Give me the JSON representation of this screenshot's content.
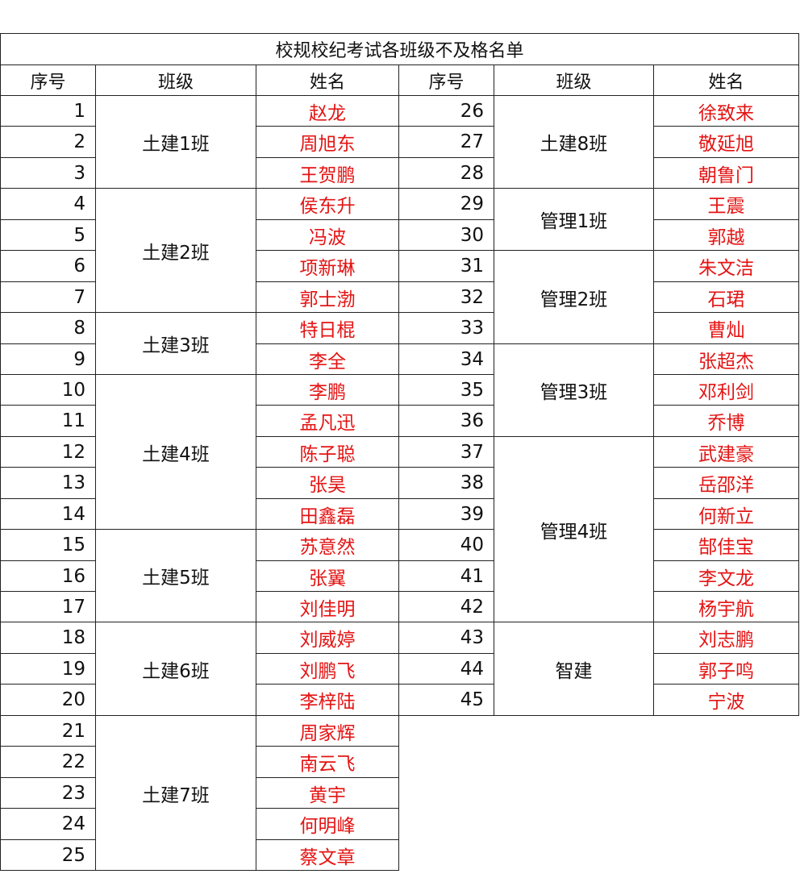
{
  "title": "校规校纪考试各班级不及格名单",
  "headers": [
    "序号",
    "班级",
    "姓名",
    "序号",
    "班级",
    "姓名"
  ],
  "colors": {
    "name_text": "#e41414",
    "border": "#222222"
  },
  "left_groups": [
    {
      "class": "土建1班",
      "students": [
        {
          "no": "1",
          "name": "赵龙"
        },
        {
          "no": "2",
          "name": "周旭东"
        },
        {
          "no": "3",
          "name": "王贺鹏"
        }
      ]
    },
    {
      "class": "土建2班",
      "students": [
        {
          "no": "4",
          "name": "侯东升"
        },
        {
          "no": "5",
          "name": "冯波"
        },
        {
          "no": "6",
          "name": "项新琳"
        },
        {
          "no": "7",
          "name": "郭士渤"
        }
      ]
    },
    {
      "class": "土建3班",
      "students": [
        {
          "no": "8",
          "name": "特日棍"
        },
        {
          "no": "9",
          "name": "李全"
        }
      ]
    },
    {
      "class": "土建4班",
      "students": [
        {
          "no": "10",
          "name": "李鹏"
        },
        {
          "no": "11",
          "name": "孟凡迅"
        },
        {
          "no": "12",
          "name": "陈子聪"
        },
        {
          "no": "13",
          "name": "张昊"
        },
        {
          "no": "14",
          "name": "田鑫磊"
        }
      ]
    },
    {
      "class": "土建5班",
      "students": [
        {
          "no": "15",
          "name": "苏意然"
        },
        {
          "no": "16",
          "name": "张翼"
        },
        {
          "no": "17",
          "name": "刘佳明"
        }
      ]
    },
    {
      "class": "土建6班",
      "students": [
        {
          "no": "18",
          "name": "刘威婷"
        },
        {
          "no": "19",
          "name": "刘鹏飞"
        },
        {
          "no": "20",
          "name": "李梓陆"
        }
      ]
    },
    {
      "class": "土建7班",
      "students": [
        {
          "no": "21",
          "name": "周家辉"
        },
        {
          "no": "22",
          "name": "南云飞"
        },
        {
          "no": "23",
          "name": "黄宇"
        },
        {
          "no": "24",
          "name": "何明峰"
        },
        {
          "no": "25",
          "name": "蔡文章"
        }
      ]
    }
  ],
  "right_groups": [
    {
      "class": "土建8班",
      "students": [
        {
          "no": "26",
          "name": "徐致来"
        },
        {
          "no": "27",
          "name": "敬延旭"
        },
        {
          "no": "28",
          "name": "朝鲁门"
        }
      ]
    },
    {
      "class": "管理1班",
      "students": [
        {
          "no": "29",
          "name": "王震"
        },
        {
          "no": "30",
          "name": "郭越"
        }
      ]
    },
    {
      "class": "管理2班",
      "students": [
        {
          "no": "31",
          "name": "朱文洁"
        },
        {
          "no": "32",
          "name": "石珺"
        },
        {
          "no": "33",
          "name": "曹灿"
        }
      ]
    },
    {
      "class": "管理3班",
      "students": [
        {
          "no": "34",
          "name": "张超杰"
        },
        {
          "no": "35",
          "name": "邓利剑"
        },
        {
          "no": "36",
          "name": "乔博"
        }
      ]
    },
    {
      "class": "管理4班",
      "students": [
        {
          "no": "37",
          "name": "武建豪"
        },
        {
          "no": "38",
          "name": "岳邵洋"
        },
        {
          "no": "39",
          "name": "何新立"
        },
        {
          "no": "40",
          "name": "郜佳宝"
        },
        {
          "no": "41",
          "name": "李文龙"
        },
        {
          "no": "42",
          "name": "杨宇航"
        }
      ]
    },
    {
      "class": "智建",
      "students": [
        {
          "no": "43",
          "name": "刘志鹏"
        },
        {
          "no": "44",
          "name": "郭子鸣"
        },
        {
          "no": "45",
          "name": "宁波"
        }
      ]
    }
  ]
}
